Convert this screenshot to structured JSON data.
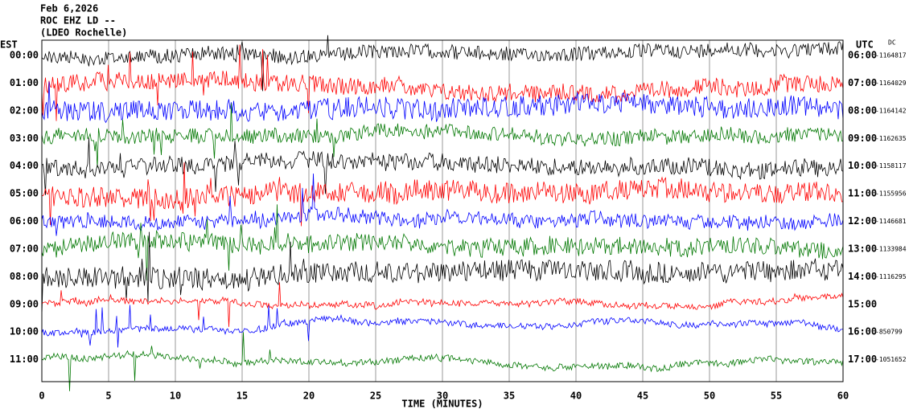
{
  "header": {
    "date": "Feb 6,2026",
    "station": "ROC EHZ LD --",
    "site": "(LDEO Rochelle)"
  },
  "left_label": "EST",
  "right_label": "UTC",
  "dc_label": "DC",
  "rows": [
    {
      "est": "00:00",
      "utc": "06:00",
      "dc": "-1164817"
    },
    {
      "est": "01:00",
      "utc": "07:00",
      "dc": "-1164029"
    },
    {
      "est": "02:00",
      "utc": "08:00",
      "dc": "-1164142"
    },
    {
      "est": "03:00",
      "utc": "09:00",
      "dc": "-1162635"
    },
    {
      "est": "04:00",
      "utc": "10:00",
      "dc": "-1158117"
    },
    {
      "est": "05:00",
      "utc": "11:00",
      "dc": "-1155956"
    },
    {
      "est": "06:00",
      "utc": "12:00",
      "dc": "-1146681"
    },
    {
      "est": "07:00",
      "utc": "13:00",
      "dc": "-1133984"
    },
    {
      "est": "08:00",
      "utc": "14:00",
      "dc": "-1116295"
    },
    {
      "est": "09:00",
      "utc": "15:00",
      "dc": null
    },
    {
      "est": "10:00",
      "utc": "16:00",
      "dc": "-850799"
    },
    {
      "est": "11:00",
      "utc": "17:00",
      "dc": "-1051652"
    }
  ],
  "x_axis": {
    "label": "TIME (MINUTES)",
    "ticks": [
      0,
      5,
      10,
      15,
      20,
      25,
      30,
      35,
      40,
      45,
      50,
      55,
      60
    ]
  }
}
